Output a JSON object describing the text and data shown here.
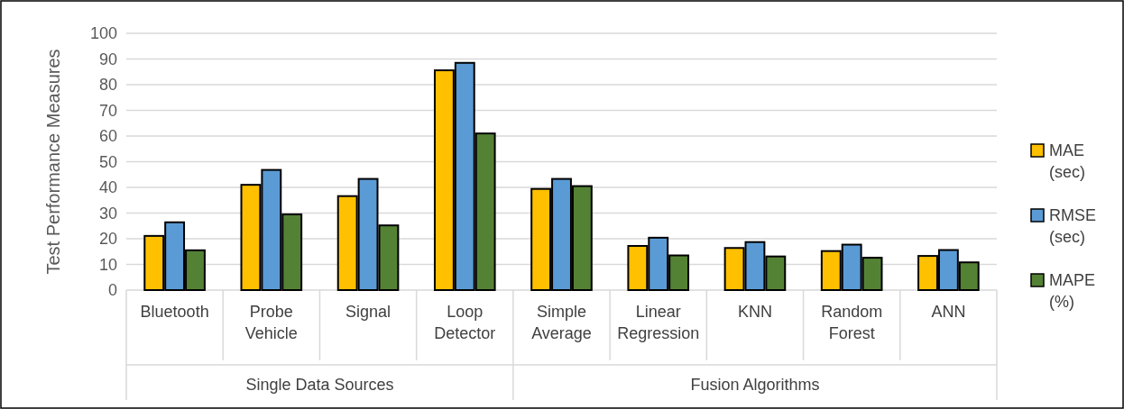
{
  "chart_data": {
    "type": "bar",
    "ylabel": "Test Performance Measures",
    "categories": [
      "Bluetooth",
      "Probe Vehicle",
      "Signal",
      "Loop Detector",
      "Simple Average",
      "Linear Regression",
      "KNN",
      "Random Forest",
      "ANN"
    ],
    "series": [
      {
        "name": "MAE (sec)",
        "color": "#ffc000",
        "values": [
          21.1,
          41,
          36.6,
          85.6,
          39.4,
          17.2,
          16.4,
          15.2,
          13.3
        ]
      },
      {
        "name": "RMSE (sec)",
        "color": "#5b9bd5",
        "values": [
          26.4,
          46.8,
          43.3,
          88.5,
          43.3,
          20.4,
          18.7,
          17.7,
          15.6
        ]
      },
      {
        "name": "MAPE (%)",
        "color": "#548235",
        "values": [
          15.5,
          29.5,
          25.2,
          61,
          40.5,
          13.5,
          13.1,
          12.6,
          10.8
        ]
      }
    ],
    "annotations": [
      "Single Data Sources",
      "Fusion Algorithms"
    ],
    "ylim": [
      0,
      100
    ],
    "yticks": [
      0,
      10,
      20,
      30,
      40,
      50,
      60,
      70,
      80,
      90,
      100
    ],
    "grid": "y",
    "legend": "right"
  }
}
